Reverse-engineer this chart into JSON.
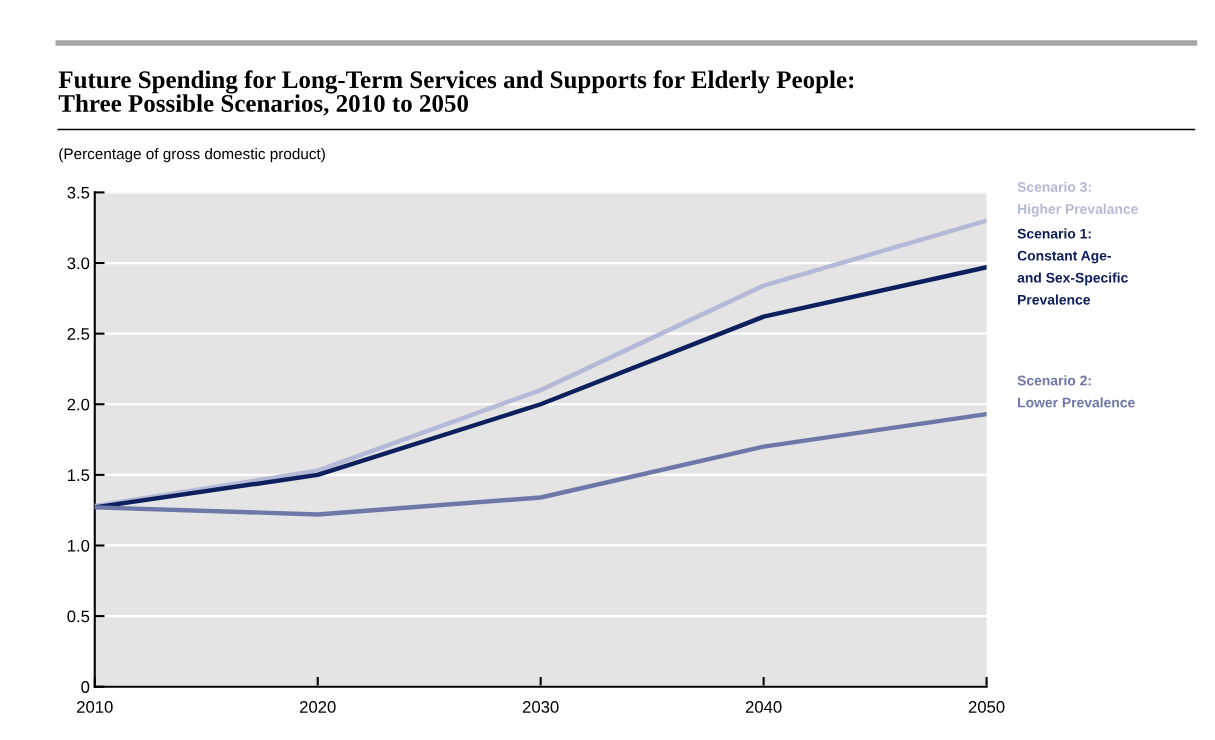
{
  "chart_data": {
    "type": "line",
    "title": "Future Spending for Long-Term Services and Supports for Elderly People:\nThree Possible Scenarios, 2010 to 2050",
    "subtitle": "(Percentage of gross domestic product)",
    "x": [
      2010,
      2020,
      2030,
      2040,
      2050
    ],
    "series": [
      {
        "name": "Scenario 3:\nHigher Prevalance",
        "color": "#b3b9d6",
        "values": [
          1.28,
          1.53,
          2.1,
          2.84,
          3.3
        ]
      },
      {
        "name": "Scenario 1:\nConstant Age-\nand Sex-Specific\nPrevalence",
        "color": "#0d1f5c",
        "values": [
          1.27,
          1.5,
          2.0,
          2.62,
          2.97
        ]
      },
      {
        "name": "Scenario 2:\nLower Prevalence",
        "color": "#6e78a8",
        "values": [
          1.27,
          1.22,
          1.34,
          1.7,
          1.93
        ]
      }
    ],
    "xlim": [
      2010,
      2050
    ],
    "xticks": [
      2010,
      2020,
      2030,
      2040,
      2050
    ],
    "ylim": [
      0,
      3.5
    ],
    "yticks": [
      0,
      0.5,
      {
        "value": 1,
        "label": "1.0"
      },
      1.5,
      {
        "value": 2,
        "label": "2.0"
      },
      2.5,
      {
        "value": 3,
        "label": "3.0"
      },
      3.5
    ],
    "grid": "y",
    "legend": false,
    "marker": "none",
    "line_style": "solid"
  }
}
